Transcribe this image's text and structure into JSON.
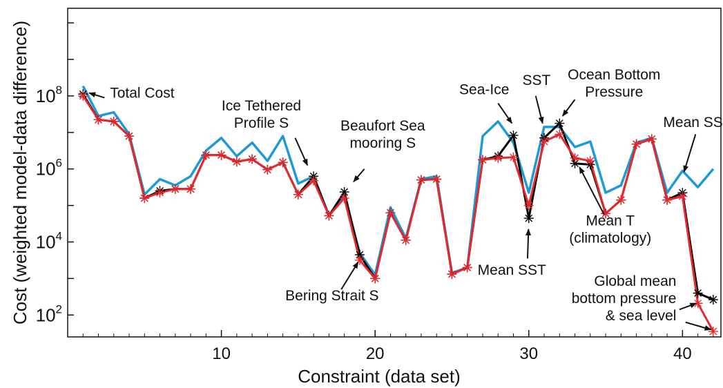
{
  "chart_data": {
    "type": "line",
    "xlabel": "Constraint (data set)",
    "ylabel": "Cost (weighted model-data difference)",
    "xlim": [
      0,
      42.5
    ],
    "ylim_log10": [
      1.4,
      10.4
    ],
    "yscale": "log",
    "x_ticks": [
      10,
      20,
      30,
      40
    ],
    "y_ticks": [
      {
        "base": "10",
        "exp": "2",
        "log10": 2
      },
      {
        "base": "10",
        "exp": "4",
        "log10": 4
      },
      {
        "base": "10",
        "exp": "6",
        "log10": 6
      },
      {
        "base": "10",
        "exp": "8",
        "log10": 8
      }
    ],
    "x": [
      1,
      2,
      3,
      4,
      5,
      6,
      7,
      8,
      9,
      10,
      11,
      12,
      13,
      14,
      15,
      16,
      17,
      18,
      19,
      20,
      21,
      22,
      23,
      24,
      25,
      26,
      27,
      28,
      29,
      30,
      31,
      32,
      33,
      34,
      35,
      36,
      37,
      38,
      39,
      40,
      41,
      42
    ],
    "series": [
      {
        "color": "#1b9ad6",
        "marker": "none",
        "log10_values": [
          8.27,
          7.45,
          7.55,
          6.95,
          5.3,
          5.72,
          5.55,
          5.8,
          6.5,
          6.85,
          6.35,
          6.72,
          6.22,
          6.9,
          5.6,
          5.8,
          4.72,
          5.25,
          3.7,
          3.1,
          4.95,
          4.1,
          5.72,
          5.8,
          3.15,
          3.3,
          6.9,
          7.3,
          6.72,
          5.35,
          7.15,
          7.15,
          6.6,
          6.75,
          5.35,
          5.55,
          6.72,
          6.85,
          5.35,
          5.95,
          5.5,
          6.0
        ]
      },
      {
        "color": "#000000",
        "marker": "asterisk",
        "log10_values": [
          8.05,
          7.35,
          7.3,
          6.9,
          5.2,
          5.4,
          5.45,
          5.45,
          6.38,
          6.38,
          6.2,
          6.27,
          5.98,
          6.18,
          5.3,
          5.8,
          4.72,
          5.37,
          3.65,
          3.0,
          4.8,
          4.05,
          5.7,
          5.72,
          3.12,
          3.3,
          6.25,
          6.35,
          6.92,
          4.65,
          6.85,
          7.25,
          6.15,
          6.12,
          4.78,
          5.15,
          6.68,
          6.82,
          5.15,
          5.35,
          2.6,
          2.42
        ]
      },
      {
        "color": "#e8282d",
        "marker": "asterisk",
        "log10_values": [
          8.0,
          7.35,
          7.3,
          6.9,
          5.2,
          5.35,
          5.45,
          5.45,
          6.38,
          6.38,
          6.2,
          6.27,
          5.98,
          6.18,
          5.3,
          5.68,
          4.72,
          5.2,
          3.5,
          3.0,
          4.8,
          4.05,
          5.7,
          5.72,
          3.12,
          3.3,
          6.25,
          6.3,
          6.32,
          5.0,
          6.75,
          6.95,
          6.3,
          6.22,
          4.78,
          5.15,
          6.68,
          6.82,
          5.15,
          5.25,
          2.32,
          1.55
        ]
      }
    ],
    "annotations": [
      {
        "lines": [
          "Total Cost"
        ],
        "anchor": "start",
        "lx": 2.75,
        "ly": 7.95,
        "ax1": 2.4,
        "ay1": 7.95,
        "ax2": 1.4,
        "ay2": 8.08
      },
      {
        "lines": [
          "Ice Tethered",
          "Profile S"
        ],
        "anchor": "middle",
        "lx": 12.6,
        "ly": 7.6,
        "ax1": 14.8,
        "ay1": 6.85,
        "ax2": 15.6,
        "ay2": 6.1
      },
      {
        "lines": [
          "Beaufort Sea",
          "mooring S"
        ],
        "anchor": "middle",
        "lx": 20.5,
        "ly": 7.05,
        "ax1": 19.3,
        "ay1": 6.0,
        "ax2": 18.6,
        "ay2": 5.65
      },
      {
        "lines": [
          "Bering Strait S"
        ],
        "anchor": "middle",
        "lx": 17.2,
        "ly": 2.4,
        "ax1": 17.8,
        "ay1": 2.7,
        "ax2": 18.9,
        "ay2": 3.45
      },
      {
        "lines": [
          "Sea-Ice"
        ],
        "anchor": "middle",
        "lx": 27.1,
        "ly": 8.05,
        "ax1": 28.0,
        "ay1": 7.8,
        "ax2": 28.9,
        "ay2": 7.25
      },
      {
        "lines": [
          "SST"
        ],
        "anchor": "middle",
        "lx": 30.5,
        "ly": 8.3,
        "ax1": 30.45,
        "ay1": 8.0,
        "ax2": 30.9,
        "ay2": 7.25
      },
      {
        "lines": [
          "Ocean Bottom",
          "Pressure"
        ],
        "anchor": "middle",
        "lx": 35.55,
        "ly": 8.45,
        "ax1": 33.0,
        "ay1": 7.9,
        "ax2": 32.2,
        "ay2": 7.45
      },
      {
        "lines": [
          "Mean SSS"
        ],
        "anchor": "middle",
        "lx": 41.0,
        "ly": 7.15,
        "ax1": 40.85,
        "ay1": 6.95,
        "ax2": 40.1,
        "ay2": 5.92
      },
      {
        "lines": [
          "Mean T",
          "(climatology)"
        ],
        "anchor": "middle",
        "lx": 35.3,
        "ly": 4.45,
        "ax1": 34.9,
        "ay1": 4.75,
        "ax2": 33.3,
        "ay2": 6.05
      },
      {
        "lines": [
          "Mean SST"
        ],
        "anchor": "middle",
        "lx": 28.9,
        "ly": 3.1,
        "ax1": 29.92,
        "ay1": 3.55,
        "ax2": 29.98,
        "ay2": 4.35
      },
      {
        "lines": [
          "Global mean",
          "bottom pressure",
          "& sea level"
        ],
        "anchor": "end",
        "lx": 39.6,
        "ly": 2.8,
        "ax1": 39.8,
        "ay1": 2.15,
        "ax2": 40.9,
        "ay2": 2.32
      },
      {
        "lines": [],
        "anchor": "end",
        "lx": 0,
        "ly": 0,
        "ax1": 40.2,
        "ay1": 1.8,
        "ax2": 41.85,
        "ay2": 1.6
      }
    ]
  }
}
